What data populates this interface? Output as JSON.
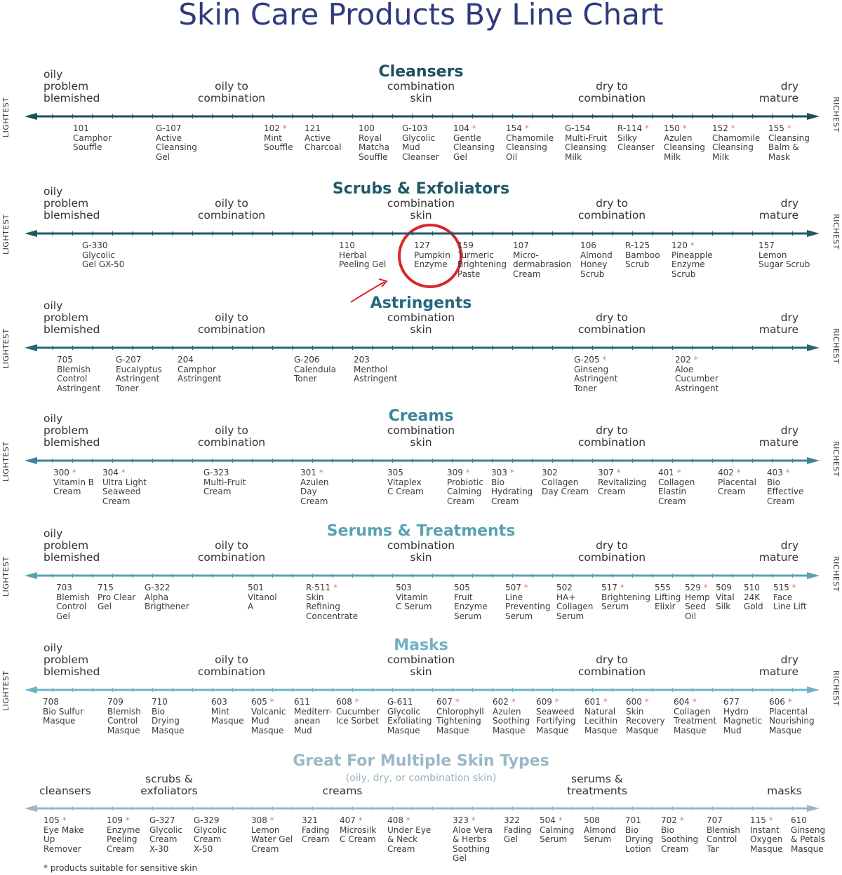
{
  "title": "Skin Care Products By Line Chart",
  "axis_labels": {
    "left": "LIGHTEST",
    "right": "RICHEST"
  },
  "zones": [
    "oily\nproblem\nblemished",
    "oily to\ncombination",
    "combination\nskin",
    "dry to\ncombination",
    "dry\nmature"
  ],
  "sections": [
    {
      "title": "Cleansers",
      "color": "#1d4f5e",
      "products": [
        {
          "code": "101",
          "name": "Camphor\nSouffle",
          "star": false
        },
        {
          "code": "G-107",
          "name": "Active\nCleansing\nGel",
          "star": false
        },
        {
          "code": "102",
          "name": "Mint\nSouffle",
          "star": true
        },
        {
          "code": "121",
          "name": "Active\nCharcoal",
          "star": false
        },
        {
          "code": "100",
          "name": "Royal\nMatcha\nSouffle",
          "star": false
        },
        {
          "code": "G-103",
          "name": "Glycolic\nMud\nCleanser",
          "star": false
        },
        {
          "code": "104",
          "name": "Gentle\nCleansing\nGel",
          "star": true
        },
        {
          "code": "154",
          "name": "Chamomile\nCleansing\nOil",
          "star": true
        },
        {
          "code": "G-154",
          "name": "Multi-Fruit\nCleansing\nMilk",
          "star": false
        },
        {
          "code": "R-114",
          "name": "Silky\nCleanser",
          "star": true
        },
        {
          "code": "150",
          "name": "Azulen\nCleansing\nMilk",
          "star": true
        },
        {
          "code": "152",
          "name": "Chamomile\nCleansing\nMilk",
          "star": true
        },
        {
          "code": "155",
          "name": "Cleansing\nBalm &\nMask",
          "star": true
        }
      ]
    },
    {
      "title": "Scrubs & Exfoliators",
      "color": "#21596a",
      "products": [
        {
          "code": "G-330",
          "name": "Glycolic\nGel GX-50",
          "star": false
        },
        {
          "code": "110",
          "name": "Herbal\nPeeling Gel",
          "star": false
        },
        {
          "code": "127",
          "name": "Pumpkin\nEnzyme",
          "star": false
        },
        {
          "code": "159",
          "name": "Turmeric\nBrightening\nPaste",
          "star": false
        },
        {
          "code": "107",
          "name": "Micro-\ndermabrasion\nCream",
          "star": false
        },
        {
          "code": "106",
          "name": "Almond\nHoney\nScrub",
          "star": false
        },
        {
          "code": "R-125",
          "name": "Bamboo\nScrub",
          "star": false
        },
        {
          "code": "120",
          "name": "Pineapple\nEnzyme\nScrub",
          "star": true
        },
        {
          "code": "157",
          "name": "Lemon\nSugar Scrub",
          "star": false
        }
      ]
    },
    {
      "title": "Astringents",
      "color": "#27677a",
      "products": [
        {
          "code": "705",
          "name": "Blemish\nControl\nAstringent",
          "star": false
        },
        {
          "code": "G-207",
          "name": "Eucalyptus\nAstringent\nToner",
          "star": false
        },
        {
          "code": "204",
          "name": "Camphor\nAstringent",
          "star": false
        },
        {
          "code": "G-206",
          "name": "Calendula\nToner",
          "star": false
        },
        {
          "code": "203",
          "name": "Menthol\nAstringent",
          "star": false
        },
        {
          "code": "G-205",
          "name": "Ginseng\nAstringent\nToner",
          "star": true
        },
        {
          "code": "202",
          "name": "Aloe\nCucumber\nAstringent",
          "star": true
        }
      ]
    },
    {
      "title": "Creams",
      "color": "#3b8496",
      "products": [
        {
          "code": "300",
          "name": "Vitamin B\nCream",
          "star": true
        },
        {
          "code": "304",
          "name": "Ultra Light\nSeaweed\nCream",
          "star": true
        },
        {
          "code": "G-323",
          "name": "Multi-Fruit\nCream",
          "star": false
        },
        {
          "code": "301",
          "name": "Azulen\nDay\nCream",
          "star": true
        },
        {
          "code": "305",
          "name": "Vitaplex\nC Cream",
          "star": false
        },
        {
          "code": "309",
          "name": "Probiotic\nCalming\nCream",
          "star": true
        },
        {
          "code": "303",
          "name": "Bio\nHydrating\nCream",
          "star": true
        },
        {
          "code": "302",
          "name": "Collagen\nDay Cream",
          "star": false
        },
        {
          "code": "307",
          "name": "Revitalizing\nCream",
          "star": true
        },
        {
          "code": "401",
          "name": "Collagen\nElastin\nCream",
          "star": true
        },
        {
          "code": "402",
          "name": "Placental\nCream",
          "star": true
        },
        {
          "code": "403",
          "name": "Bio\nEffective\nCream",
          "star": true
        }
      ]
    },
    {
      "title": "Serums & Treatments",
      "color": "#5aa2b3",
      "products": [
        {
          "code": "703",
          "name": "Blemish\nControl\nGel",
          "star": false
        },
        {
          "code": "715",
          "name": "Pro Clear\nGel",
          "star": false
        },
        {
          "code": "G-322",
          "name": "Alpha\nBrigthener",
          "star": false
        },
        {
          "code": "501",
          "name": "Vitanol\nA",
          "star": false
        },
        {
          "code": "R-511",
          "name": "Skin\nRefining\nConcentrate",
          "star": true
        },
        {
          "code": "503",
          "name": "Vitamin\nC Serum",
          "star": false
        },
        {
          "code": "505",
          "name": "Fruit\nEnzyme\nSerum",
          "star": false
        },
        {
          "code": "507",
          "name": "Line\nPreventing\nSerum",
          "star": true
        },
        {
          "code": "502",
          "name": "HA+\nCollagen\nSerum",
          "star": false
        },
        {
          "code": "517",
          "name": "Brightening\nSerum",
          "star": true
        },
        {
          "code": "555",
          "name": "Lifting\nElixir",
          "star": false
        },
        {
          "code": "529",
          "name": "Hemp\nSeed\nOil",
          "star": true
        },
        {
          "code": "509",
          "name": "Vital\nSilk",
          "star": false
        },
        {
          "code": "510",
          "name": "24K\nGold",
          "star": false
        },
        {
          "code": "515",
          "name": "Face\nLine Lift",
          "star": true
        }
      ]
    },
    {
      "title": "Masks",
      "color": "#6fb3c6",
      "products": [
        {
          "code": "708",
          "name": "Bio Sulfur\nMasque",
          "star": false
        },
        {
          "code": "709",
          "name": "Blemish\nControl\nMasque",
          "star": false
        },
        {
          "code": "710",
          "name": "Bio\nDrying\nMasque",
          "star": false
        },
        {
          "code": "603",
          "name": "Mint\nMasque",
          "star": false
        },
        {
          "code": "605",
          "name": "Volcanic\nMud\nMasque",
          "star": true
        },
        {
          "code": "611",
          "name": "Mediterr-\nanean\nMud",
          "star": false
        },
        {
          "code": "608",
          "name": "Cucumber\nIce Sorbet",
          "star": true
        },
        {
          "code": "G-611",
          "name": "Glycolic\nExfoliating\nMasque",
          "star": false
        },
        {
          "code": "607",
          "name": "Chlorophyll\nTightening\nMasque",
          "star": true
        },
        {
          "code": "602",
          "name": "Azulen\nSoothing\nMasque",
          "star": true
        },
        {
          "code": "609",
          "name": "Seaweed\nFortifying\nMasque",
          "star": true
        },
        {
          "code": "601",
          "name": "Natural\nLecithin\nMasque",
          "star": true
        },
        {
          "code": "600",
          "name": "Skin\nRecovery\nMasque",
          "star": true
        },
        {
          "code": "604",
          "name": "Collagen\nTreatment\nMasque",
          "star": true
        },
        {
          "code": "677",
          "name": "Hydro\nMagnetic\nMud",
          "star": false
        },
        {
          "code": "606",
          "name": "Placental\nNourishing\nMasque",
          "star": true
        }
      ]
    }
  ],
  "multi": {
    "title": "Great For Multiple Skin Types",
    "subtitle": "(oily, dry, or combination skin)",
    "color": "#9ab8c6",
    "zones": [
      "cleansers",
      "scrubs &\nexfoliators",
      "creams",
      "serums &\ntreatments",
      "masks"
    ],
    "products": [
      {
        "code": "105",
        "name": "Eye Make\nUp\nRemover",
        "star": true
      },
      {
        "code": "109",
        "name": "Enzyme\nPeeling\nCream",
        "star": true
      },
      {
        "code": "G-327",
        "name": "Glycolic\nCream\nX-30",
        "star": false
      },
      {
        "code": "G-329",
        "name": "Glycolic\nCream\nX-50",
        "star": false
      },
      {
        "code": "308",
        "name": "Lemon\nWater Gel\nCream",
        "star": true
      },
      {
        "code": "321",
        "name": "Fading\nCream",
        "star": false
      },
      {
        "code": "407",
        "name": "Microsilk\nC Cream",
        "star": true
      },
      {
        "code": "408",
        "name": "Under Eye\n& Neck\nCream",
        "star": true
      },
      {
        "code": "323",
        "name": "Aloe Vera\n& Herbs\nSoothing\nGel",
        "star": true
      },
      {
        "code": "322",
        "name": "Fading\nGel",
        "star": false
      },
      {
        "code": "504",
        "name": "Calming\nSerum",
        "star": true
      },
      {
        "code": "508",
        "name": "Almond\nSerum",
        "star": false
      },
      {
        "code": "701",
        "name": "Bio\nDrying\nLotion",
        "star": false
      },
      {
        "code": "702",
        "name": "Bio\nSoothing\nCream",
        "star": true
      },
      {
        "code": "707",
        "name": "Blemish\nControl\nTar",
        "star": false
      },
      {
        "code": "115",
        "name": "Instant\nOxygen\nMasque",
        "star": true
      },
      {
        "code": "610",
        "name": "Ginseng\n& Petals\nMasque",
        "star": false
      }
    ]
  },
  "star_symbol": "*",
  "footnote": "* products suitable for sensitive skin",
  "highlight": {
    "target": "127 Pumpkin Enzyme",
    "color": "#d9262c"
  }
}
